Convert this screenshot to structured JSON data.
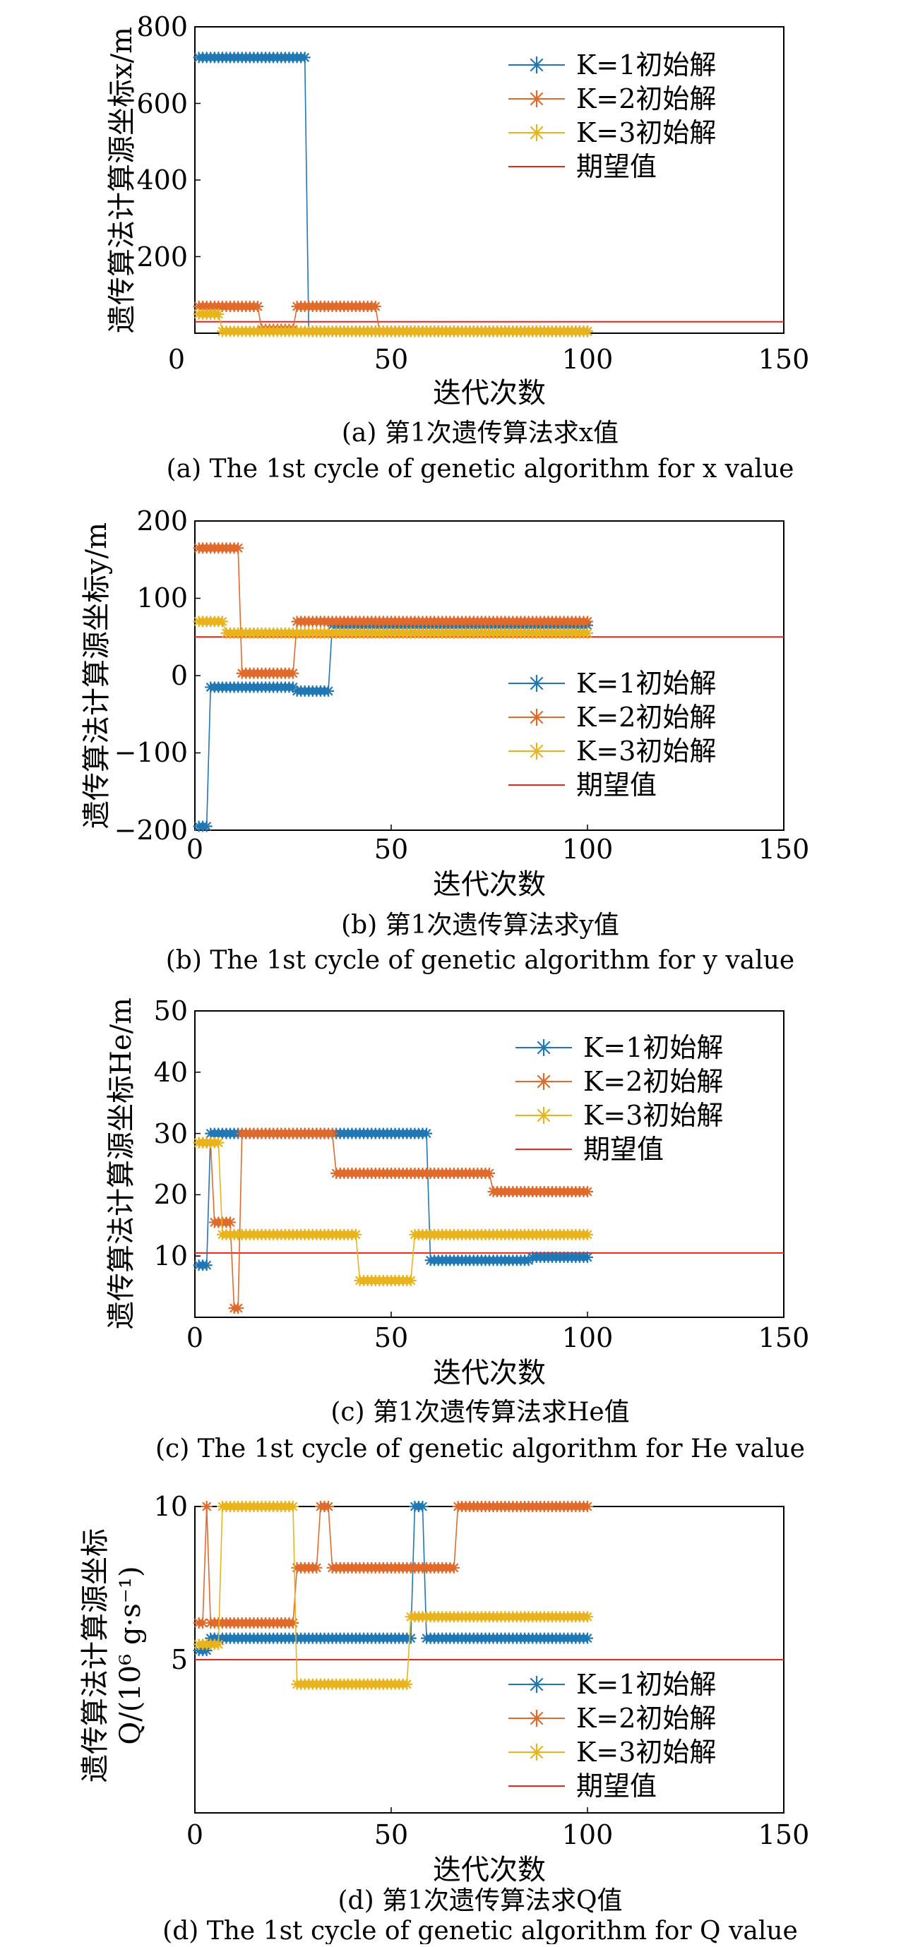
{
  "figure": {
    "panels": [
      {
        "caption_cn": "(a) 第1次遗传算法求x值",
        "caption_en": "(a) The 1st cycle of genetic algorithm for x value",
        "xlabel": "迭代次数",
        "ylabel": "遗传算法计算源坐标x/m",
        "legend": [
          "K=1初始解",
          "K=2初始解",
          "K=3初始解",
          "期望值"
        ]
      },
      {
        "caption_cn": "(b) 第1次遗传算法求y值",
        "caption_en": "(b) The 1st cycle of genetic algorithm for y value",
        "xlabel": "迭代次数",
        "ylabel": "遗传算法计算源坐标y/m",
        "legend": [
          "K=1初始解",
          "K=2初始解",
          "K=3初始解",
          "期望值"
        ]
      },
      {
        "caption_cn": "(c) 第1次遗传算法求He值",
        "caption_en": "(c) The 1st cycle of genetic algorithm for He value",
        "xlabel": "迭代次数",
        "ylabel": "遗传算法计算源坐标He/m",
        "legend": [
          "K=1初始解",
          "K=2初始解",
          "K=3初始解",
          "期望值"
        ]
      },
      {
        "caption_cn": "(d) 第1次遗传算法求Q值",
        "caption_en": "(d) The 1st cycle of genetic algorithm for Q value",
        "xlabel": "迭代次数",
        "ylabel_line1": "遗传算法计算源坐标",
        "ylabel_line2": "Q/(10⁶ g·s⁻¹)",
        "legend": [
          "K=1初始解",
          "K=2初始解",
          "K=3初始解",
          "期望值"
        ]
      }
    ]
  },
  "chart_data": [
    {
      "type": "line",
      "xlim": [
        0,
        150
      ],
      "ylim": [
        0,
        800
      ],
      "xticks": [
        0,
        50,
        100,
        150
      ],
      "yticks": [
        200,
        400,
        600,
        800
      ],
      "colors": {
        "k1": "#1f77b4",
        "k2": "#e06a2b",
        "k3": "#e8b31c",
        "expected": "#e8221c"
      },
      "expected": 30,
      "series": [
        {
          "name": "K=1初始解",
          "segments": [
            [
              1,
              28,
              720
            ],
            [
              29,
              100,
              5
            ]
          ]
        },
        {
          "name": "K=2初始解",
          "segments": [
            [
              1,
              16,
              70
            ],
            [
              17,
              25,
              10
            ],
            [
              26,
              46,
              70
            ],
            [
              47,
              100,
              5
            ]
          ]
        },
        {
          "name": "K=3初始解",
          "segments": [
            [
              1,
              6,
              50
            ],
            [
              7,
              100,
              5
            ]
          ]
        }
      ]
    },
    {
      "type": "line",
      "xlim": [
        0,
        150
      ],
      "ylim": [
        -200,
        200
      ],
      "xticks": [
        0,
        50,
        100,
        150
      ],
      "yticks": [
        -200,
        -100,
        0,
        100,
        200
      ],
      "colors": {
        "k1": "#1f77b4",
        "k2": "#e06a2b",
        "k3": "#e8b31c",
        "expected": "#e8221c"
      },
      "expected": 50,
      "series": [
        {
          "name": "K=1初始解",
          "segments": [
            [
              1,
              3,
              -195
            ],
            [
              4,
              25,
              -15
            ],
            [
              26,
              34,
              -20
            ],
            [
              35,
              100,
              65
            ]
          ]
        },
        {
          "name": "K=2初始解",
          "segments": [
            [
              1,
              11,
              165
            ],
            [
              12,
              25,
              3
            ],
            [
              26,
              100,
              70
            ]
          ]
        },
        {
          "name": "K=3初始解",
          "segments": [
            [
              1,
              7,
              70
            ],
            [
              8,
              100,
              55
            ]
          ]
        }
      ]
    },
    {
      "type": "line",
      "xlim": [
        0,
        150
      ],
      "ylim": [
        0,
        50
      ],
      "xticks": [
        0,
        50,
        100,
        150
      ],
      "yticks": [
        10,
        20,
        30,
        40,
        50
      ],
      "colors": {
        "k1": "#1f77b4",
        "k2": "#e06a2b",
        "k3": "#e8b31c",
        "expected": "#e8221c"
      },
      "expected": 10.5,
      "series": [
        {
          "name": "K=1初始解",
          "segments": [
            [
              1,
              3,
              8.5
            ],
            [
              4,
              59,
              30
            ],
            [
              60,
              85,
              9.3
            ],
            [
              86,
              100,
              9.8
            ]
          ]
        },
        {
          "name": "K=2初始解",
          "segments": [
            [
              1,
              4,
              28.5
            ],
            [
              5,
              9,
              15.5
            ],
            [
              10,
              11,
              1.5
            ],
            [
              12,
              35,
              30
            ],
            [
              36,
              75,
              23.5
            ],
            [
              76,
              100,
              20.5
            ]
          ]
        },
        {
          "name": "K=3初始解",
          "segments": [
            [
              1,
              6,
              28.5
            ],
            [
              7,
              41,
              13.5
            ],
            [
              42,
              55,
              6
            ],
            [
              56,
              100,
              13.5
            ]
          ]
        }
      ]
    },
    {
      "type": "line",
      "xlim": [
        0,
        150
      ],
      "ylim": [
        0,
        10
      ],
      "xticks": [
        0,
        50,
        100,
        150
      ],
      "yticks": [
        5,
        10
      ],
      "colors": {
        "k1": "#1f77b4",
        "k2": "#e06a2b",
        "k3": "#e8b31c",
        "expected": "#e8221c"
      },
      "expected": 5,
      "series": [
        {
          "name": "K=1初始解",
          "segments": [
            [
              1,
              3,
              5.3
            ],
            [
              4,
              55,
              5.7
            ],
            [
              56,
              58,
              10
            ],
            [
              59,
              100,
              5.7
            ]
          ]
        },
        {
          "name": "K=2初始解",
          "segments": [
            [
              1,
              2,
              6.2
            ],
            [
              3,
              3,
              10
            ],
            [
              4,
              25,
              6.2
            ],
            [
              26,
              31,
              8
            ],
            [
              32,
              34,
              10
            ],
            [
              35,
              66,
              8
            ],
            [
              67,
              100,
              10
            ]
          ]
        },
        {
          "name": "K=3初始解",
          "segments": [
            [
              1,
              6,
              5.5
            ],
            [
              7,
              25,
              10
            ],
            [
              26,
              54,
              4.2
            ],
            [
              55,
              100,
              6.4
            ]
          ]
        }
      ]
    }
  ]
}
